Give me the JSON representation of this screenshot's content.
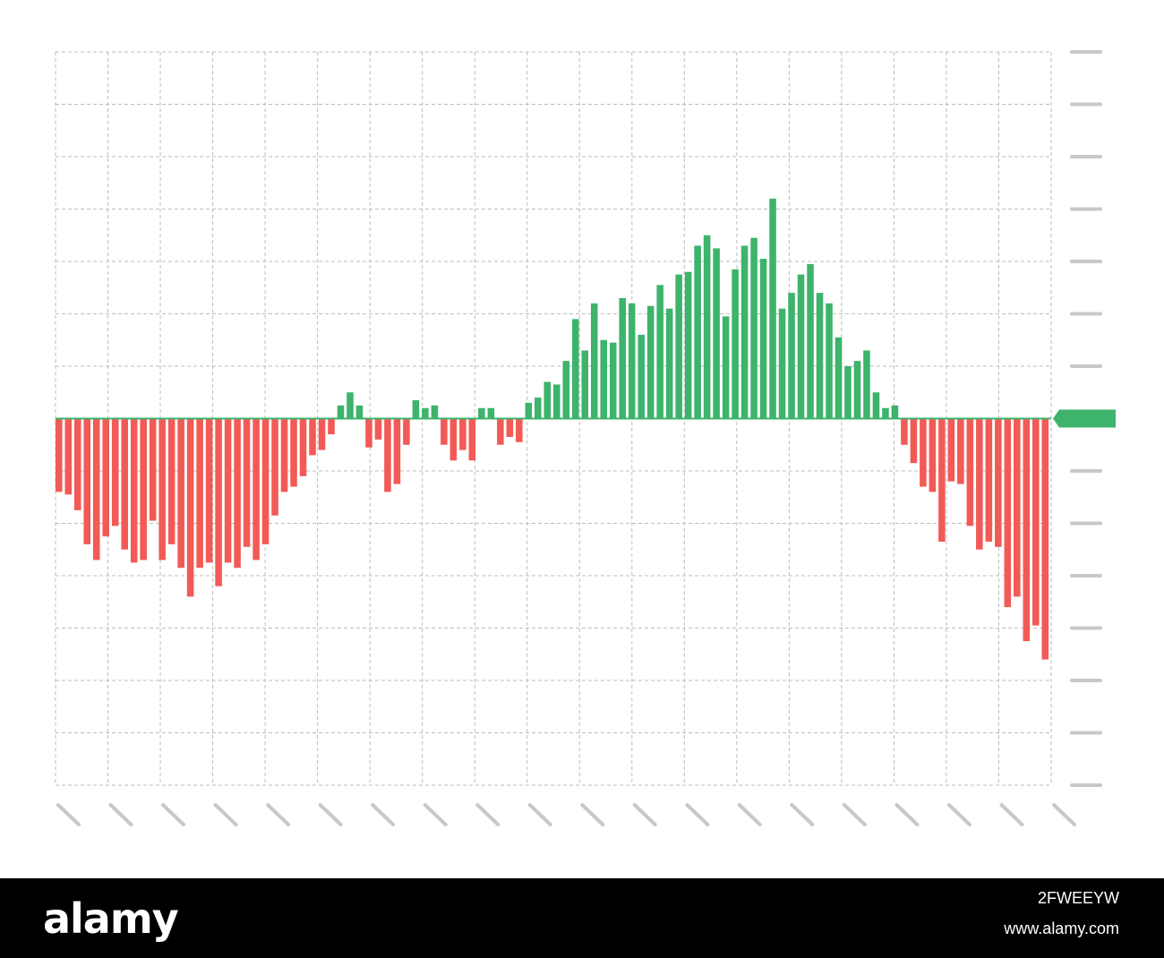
{
  "chart_data": {
    "type": "bar",
    "title": "",
    "xlabel": "",
    "ylabel": "",
    "ylim": [
      -7,
      7
    ],
    "grid": true,
    "legend": "none",
    "colors": {
      "positive": "#3db36b",
      "negative": "#f25a56",
      "grid": "#bdbdbd",
      "tick": "#c8c8c8",
      "marker": "#3db36b"
    },
    "values": [
      -1.4,
      -1.45,
      -1.75,
      -2.4,
      -2.7,
      -2.25,
      -2.05,
      -2.5,
      -2.75,
      -2.7,
      -1.95,
      -2.7,
      -2.4,
      -2.85,
      -3.4,
      -2.85,
      -2.75,
      -3.2,
      -2.75,
      -2.85,
      -2.45,
      -2.7,
      -2.4,
      -1.85,
      -1.4,
      -1.3,
      -1.1,
      -0.7,
      -0.6,
      -0.3,
      0.25,
      0.5,
      0.25,
      -0.55,
      -0.4,
      -1.4,
      -1.25,
      -0.5,
      0.35,
      0.2,
      0.25,
      -0.5,
      -0.8,
      -0.6,
      -0.8,
      0.2,
      0.2,
      -0.5,
      -0.35,
      -0.45,
      0.3,
      0.4,
      0.7,
      0.65,
      1.1,
      1.9,
      1.3,
      2.2,
      1.5,
      1.45,
      2.3,
      2.2,
      1.6,
      2.15,
      2.55,
      2.1,
      2.75,
      2.8,
      3.3,
      3.5,
      3.25,
      1.95,
      2.85,
      3.3,
      3.45,
      3.05,
      4.2,
      2.1,
      2.4,
      2.75,
      2.95,
      2.4,
      2.2,
      1.55,
      1.0,
      1.1,
      1.3,
      0.5,
      0.2,
      0.25,
      -0.5,
      -0.85,
      -1.3,
      -1.4,
      -2.35,
      -1.2,
      -1.25,
      -2.05,
      -2.5,
      -2.35,
      -2.45,
      -3.6,
      -3.4,
      -4.25,
      -3.95,
      -4.6
    ]
  },
  "axis": {
    "y_tick_count": 15,
    "x_tick_count": 20
  },
  "footer": {
    "logo_text": "alamy",
    "image_id": "2FWEEYW",
    "site": "www.alamy.com"
  }
}
